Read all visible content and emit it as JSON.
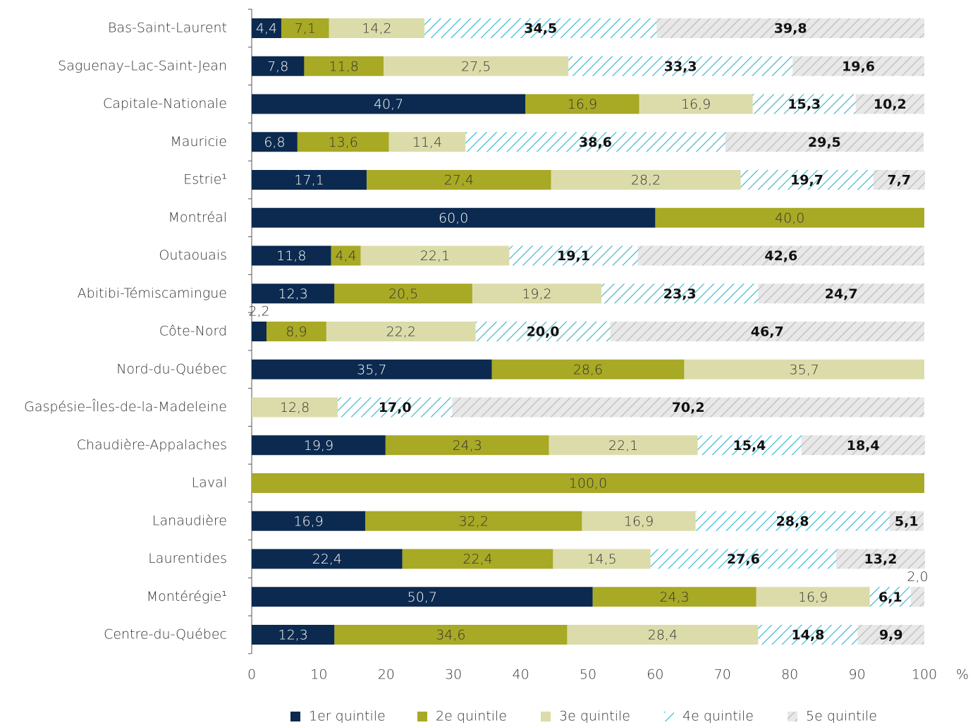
{
  "chart_data": {
    "type": "stacked-bar-horizontal",
    "categories": [
      "Bas-Saint-Laurent",
      "Saguenay–Lac-Saint-Jean",
      "Capitale-Nationale",
      "Mauricie",
      "Estrie¹",
      "Montréal",
      "Outaouais",
      "Abitibi-Témiscamingue",
      "Côte-Nord",
      "Nord-du-Québec",
      "Gaspésie–Îles-de-la-Madeleine",
      "Chaudière-Appalaches",
      "Laval",
      "Lanaudière",
      "Laurentides",
      "Montérégie¹",
      "Centre-du-Québec"
    ],
    "series": [
      {
        "name": "1er quintile",
        "color": "#0c2a4f",
        "values": [
          4.4,
          7.8,
          40.7,
          6.8,
          17.1,
          60.0,
          11.8,
          12.3,
          2.2,
          35.7,
          null,
          19.9,
          null,
          16.9,
          22.4,
          50.7,
          12.3
        ],
        "value_labels": [
          "4,4",
          "7,8",
          "40,7",
          "6,8",
          "17,1",
          "60,0",
          "11,8",
          "12,3",
          "2,2",
          "35,7",
          null,
          "19,9",
          null,
          "16,9",
          "22,4",
          "50,7",
          "12,3"
        ]
      },
      {
        "name": "2e quintile",
        "color": "#a8a925",
        "values": [
          7.1,
          11.8,
          16.9,
          13.6,
          27.4,
          40.0,
          4.4,
          20.5,
          8.9,
          28.6,
          null,
          24.3,
          100.0,
          32.2,
          22.4,
          24.3,
          34.6
        ],
        "value_labels": [
          "7,1",
          "11,8",
          "16,9",
          "13,6",
          "27,4",
          "40,0",
          "4,4",
          "20,5",
          "8,9",
          "28,6",
          null,
          "24,3",
          "100,0",
          "32,2",
          "22,4",
          "24,3",
          "34,6"
        ]
      },
      {
        "name": "3e quintile",
        "color": "#dcdcaa",
        "values": [
          14.2,
          27.5,
          16.9,
          11.4,
          28.2,
          null,
          22.1,
          19.2,
          22.2,
          35.7,
          12.8,
          22.1,
          null,
          16.9,
          14.5,
          16.9,
          28.4
        ],
        "value_labels": [
          "14,2",
          "27,5",
          "16,9",
          "11,4",
          "28,2",
          null,
          "22,1",
          "19,2",
          "22,2",
          "35,7",
          "12,8",
          "22,1",
          null,
          "16,9",
          "14,5",
          "16,9",
          "28,4"
        ]
      },
      {
        "name": "4e quintile",
        "color": "#2ab4cc",
        "values": [
          34.5,
          33.3,
          15.3,
          38.6,
          19.7,
          null,
          19.1,
          23.3,
          20.0,
          null,
          17.0,
          15.4,
          null,
          28.8,
          27.6,
          6.1,
          14.8
        ],
        "value_labels": [
          "34,5",
          "33,3",
          "15,3",
          "38,6",
          "19,7",
          null,
          "19,1",
          "23,3",
          "20,0",
          null,
          "17,0",
          "15,4",
          null,
          "28,8",
          "27,6",
          "6,1",
          "14,8"
        ]
      },
      {
        "name": "5e quintile",
        "color": "#cccccc",
        "values": [
          39.8,
          19.6,
          10.2,
          29.5,
          7.7,
          null,
          42.6,
          24.7,
          46.7,
          null,
          70.2,
          18.4,
          null,
          5.1,
          13.2,
          2.0,
          9.9
        ],
        "value_labels": [
          "39,8",
          "19,6",
          "10,2",
          "29,5",
          "7,7",
          null,
          "42,6",
          "24,7",
          "46,7",
          null,
          "70,2",
          "18,4",
          null,
          "5,1",
          "13,2",
          "2,0",
          "9,9"
        ]
      }
    ],
    "xlim": [
      0,
      100
    ],
    "xticks": [
      0,
      10,
      20,
      30,
      40,
      50,
      60,
      70,
      80,
      90,
      100
    ],
    "xlabel": "%"
  }
}
